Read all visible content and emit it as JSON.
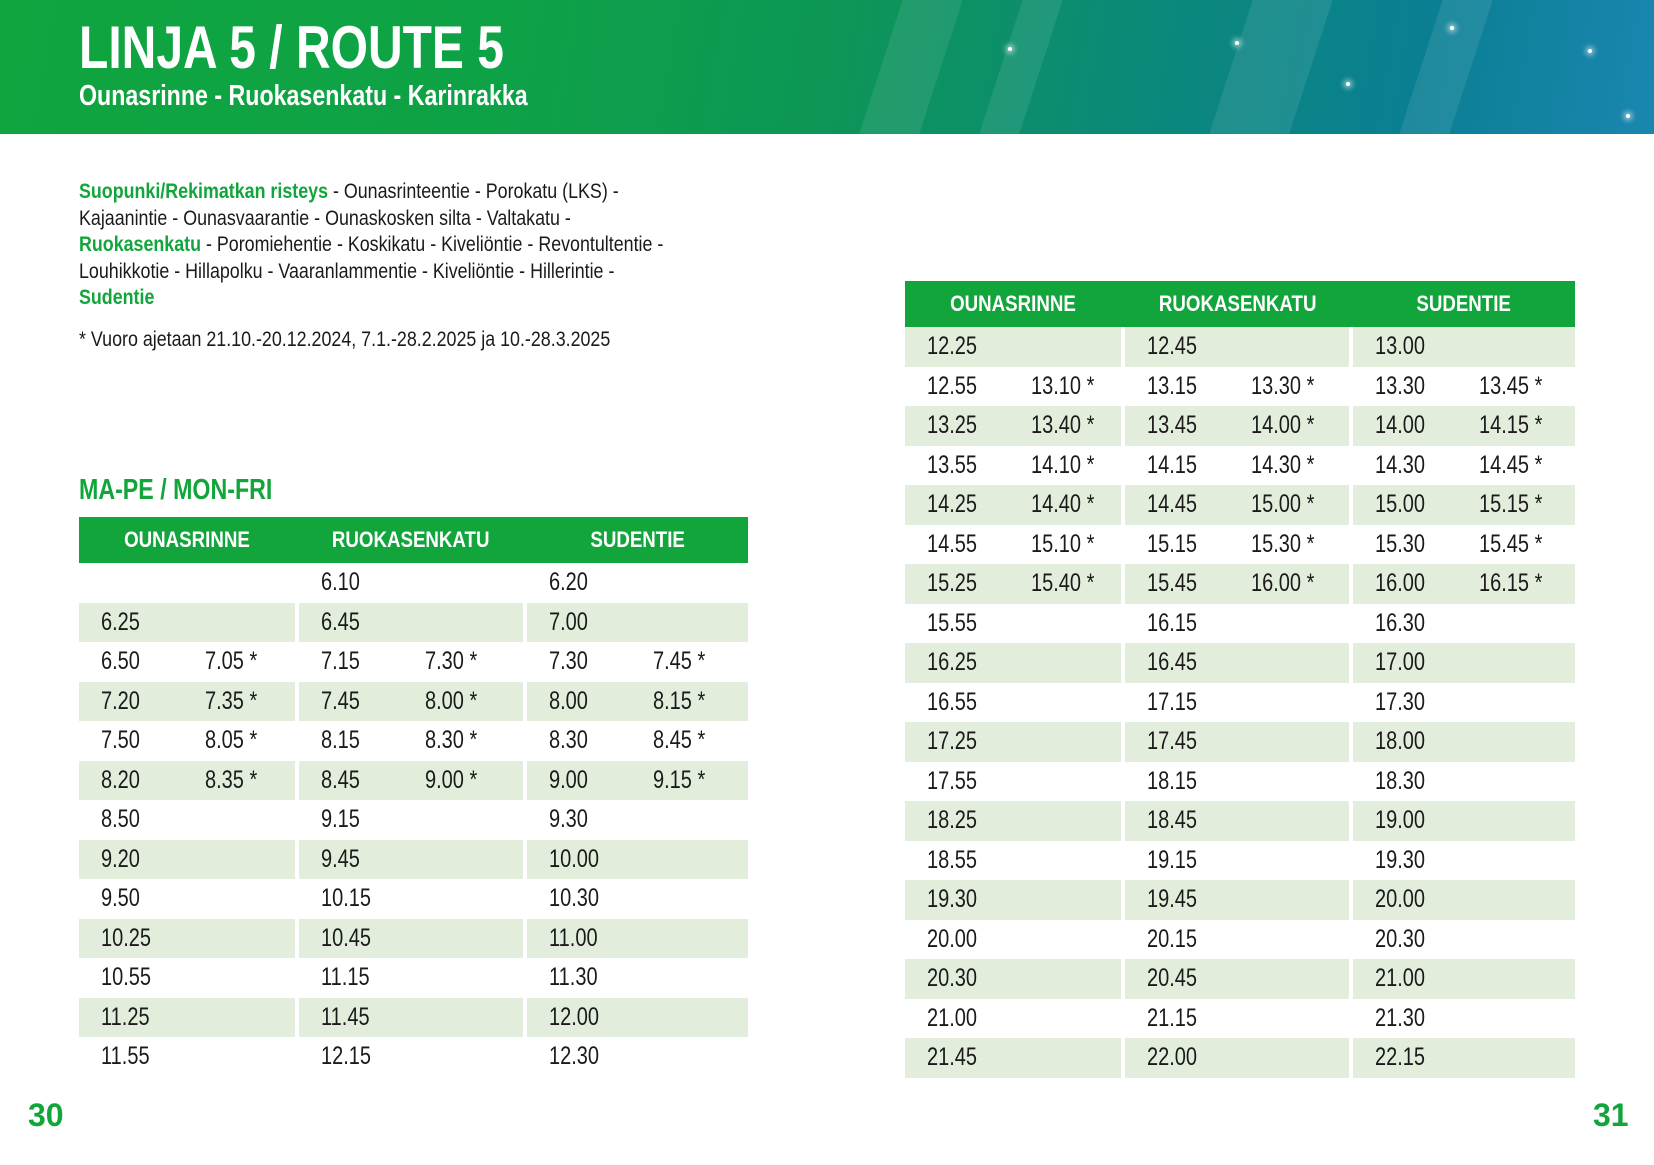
{
  "header": {
    "title": "LINJA 5 / ROUTE 5",
    "subtitle": "Ounasrinne - Ruokasenkatu - Karinrakka"
  },
  "route_description": {
    "stop1": "Suopunki/Rekimatkan risteys",
    "seg1": " - Ounasrinteentie - Porokatu (LKS) -",
    "seg2": "Kajaanintie - Ounasvaarantie - Ounaskosken silta - Valtakatu -",
    "stop2": "Ruokasenkatu",
    "seg3": " - Poromiehentie - Koskikatu - Kiveliöntie - Revontultentie -",
    "seg4": "Louhikkotie - Hillapolku - Vaaranlammentie - Kiveliöntie - Hillerintie -",
    "stop3": "Sudentie",
    "note": "* Vuoro ajetaan 21.10.-20.12.2024, 7.1.-28.2.2025 ja 10.-28.3.2025"
  },
  "section_title": "MA-PE / MON-FRI",
  "colors": {
    "brand_green": "#12a53c",
    "row_shade": "#e2eedb"
  },
  "columns": [
    "OUNASRINNE",
    "RUOKASENKATU",
    "SUDENTIE"
  ],
  "table_left": {
    "rows": [
      [
        "",
        "",
        "6.10",
        "",
        "6.20",
        ""
      ],
      [
        "6.25",
        "",
        "6.45",
        "",
        "7.00",
        ""
      ],
      [
        "6.50",
        "7.05 *",
        "7.15",
        "7.30 *",
        "7.30",
        "7.45 *"
      ],
      [
        "7.20",
        "7.35 *",
        "7.45",
        "8.00 *",
        "8.00",
        "8.15 *"
      ],
      [
        "7.50",
        "8.05 *",
        "8.15",
        "8.30 *",
        "8.30",
        "8.45 *"
      ],
      [
        "8.20",
        "8.35 *",
        "8.45",
        "9.00 *",
        "9.00",
        "9.15 *"
      ],
      [
        "8.50",
        "",
        "9.15",
        "",
        "9.30",
        ""
      ],
      [
        "9.20",
        "",
        "9.45",
        "",
        "10.00",
        ""
      ],
      [
        "9.50",
        "",
        "10.15",
        "",
        "10.30",
        ""
      ],
      [
        "10.25",
        "",
        "10.45",
        "",
        "11.00",
        ""
      ],
      [
        "10.55",
        "",
        "11.15",
        "",
        "11.30",
        ""
      ],
      [
        "11.25",
        "",
        "11.45",
        "",
        "12.00",
        ""
      ],
      [
        "11.55",
        "",
        "12.15",
        "",
        "12.30",
        ""
      ]
    ]
  },
  "table_right": {
    "rows": [
      [
        "12.25",
        "",
        "12.45",
        "",
        "13.00",
        ""
      ],
      [
        "12.55",
        "13.10 *",
        "13.15",
        "13.30 *",
        "13.30",
        "13.45 *"
      ],
      [
        "13.25",
        "13.40 *",
        "13.45",
        "14.00 *",
        "14.00",
        "14.15 *"
      ],
      [
        "13.55",
        "14.10 *",
        "14.15",
        "14.30 *",
        "14.30",
        "14.45 *"
      ],
      [
        "14.25",
        "14.40 *",
        "14.45",
        "15.00 *",
        "15.00",
        "15.15 *"
      ],
      [
        "14.55",
        "15.10 *",
        "15.15",
        "15.30 *",
        "15.30",
        "15.45 *"
      ],
      [
        "15.25",
        "15.40 *",
        "15.45",
        "16.00 *",
        "16.00",
        "16.15 *"
      ],
      [
        "15.55",
        "",
        "16.15",
        "",
        "16.30",
        ""
      ],
      [
        "16.25",
        "",
        "16.45",
        "",
        "17.00",
        ""
      ],
      [
        "16.55",
        "",
        "17.15",
        "",
        "17.30",
        ""
      ],
      [
        "17.25",
        "",
        "17.45",
        "",
        "18.00",
        ""
      ],
      [
        "17.55",
        "",
        "18.15",
        "",
        "18.30",
        ""
      ],
      [
        "18.25",
        "",
        "18.45",
        "",
        "19.00",
        ""
      ],
      [
        "18.55",
        "",
        "19.15",
        "",
        "19.30",
        ""
      ],
      [
        "19.30",
        "",
        "19.45",
        "",
        "20.00",
        ""
      ],
      [
        "20.00",
        "",
        "20.15",
        "",
        "20.30",
        ""
      ],
      [
        "20.30",
        "",
        "20.45",
        "",
        "21.00",
        ""
      ],
      [
        "21.00",
        "",
        "21.15",
        "",
        "21.30",
        ""
      ],
      [
        "21.45",
        "",
        "22.00",
        "",
        "22.15",
        ""
      ]
    ]
  },
  "page_numbers": {
    "left": "30",
    "right": "31"
  }
}
